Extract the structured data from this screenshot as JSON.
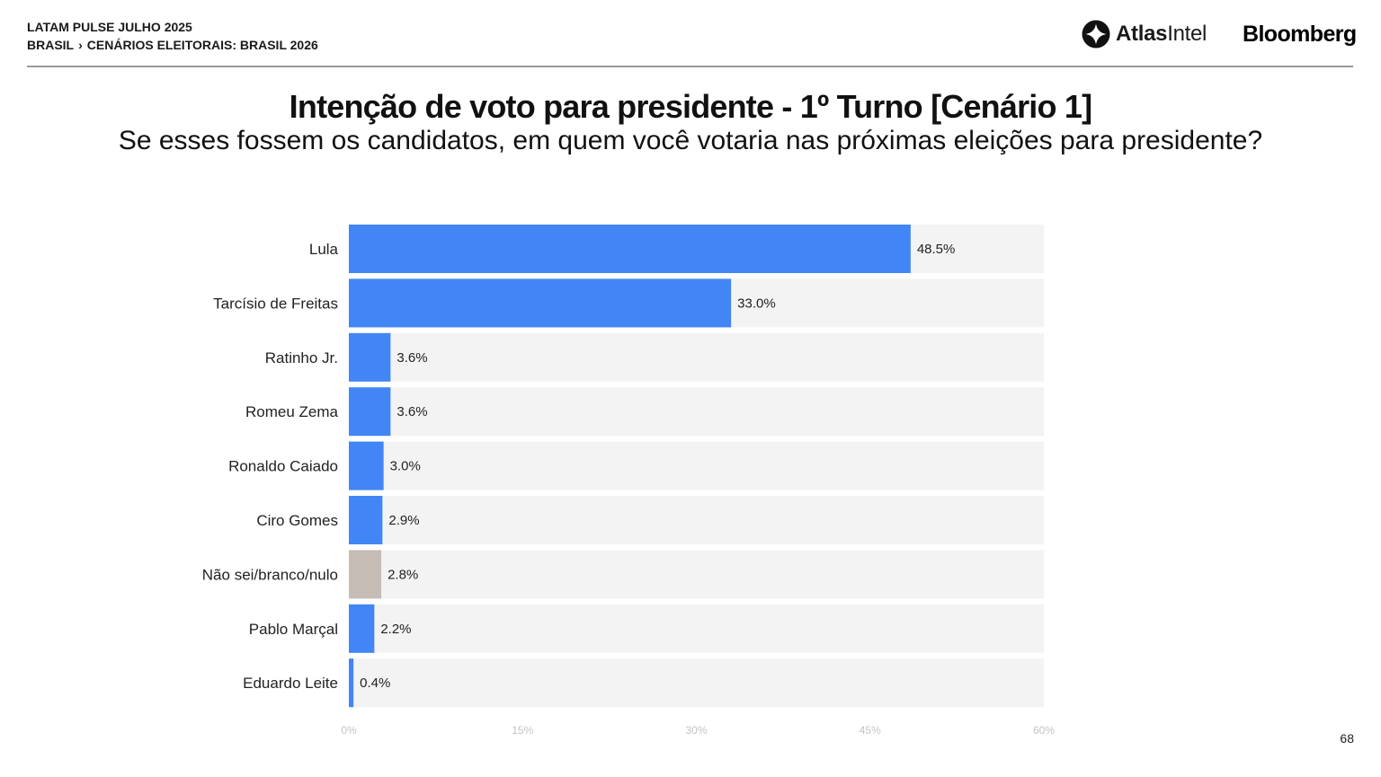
{
  "header": {
    "line1": "LATAM PULSE JULHO 2025",
    "crumb_root": "BRASIL",
    "crumb_sep": "›",
    "crumb_leaf": "CENÁRIOS ELEITORAIS: BRASIL 2026",
    "logo_atlas_a": "Atlas",
    "logo_atlas_b": "Intel",
    "logo_bloomberg": "Bloomberg"
  },
  "colors": {
    "candidate_bar": "#4285f4",
    "undecided_bar": "#c5bcb6",
    "track": "#f3f3f3",
    "tick_label": "#c4c4c4"
  },
  "chart_data": {
    "type": "bar",
    "orientation": "horizontal",
    "title": "Intenção de voto para presidente - 1º Turno [Cenário 1]",
    "subtitle": "Se esses fossem os candidatos, em quem você votaria nas próximas eleições para presidente?",
    "categories": [
      "Lula",
      "Tarcísio de Freitas",
      "Ratinho Jr.",
      "Romeu Zema",
      "Ronaldo Caiado",
      "Ciro Gomes",
      "Não sei/branco/nulo",
      "Pablo Marçal",
      "Eduardo Leite"
    ],
    "values": [
      48.5,
      33.0,
      3.6,
      3.6,
      3.0,
      2.9,
      2.8,
      2.2,
      0.4
    ],
    "value_labels": [
      "48.5%",
      "33.0%",
      "3.6%",
      "3.6%",
      "3.0%",
      "2.9%",
      "2.8%",
      "2.2%",
      "0.4%"
    ],
    "highlight_categories": [
      "Não sei/branco/nulo"
    ],
    "xlim": [
      0,
      60
    ],
    "xticks": [
      0,
      15,
      30,
      45,
      60
    ],
    "xtick_labels": [
      "0%",
      "15%",
      "30%",
      "45%",
      "60%"
    ],
    "grid": false,
    "legend": "none"
  },
  "footer": {
    "page_number": "68"
  }
}
